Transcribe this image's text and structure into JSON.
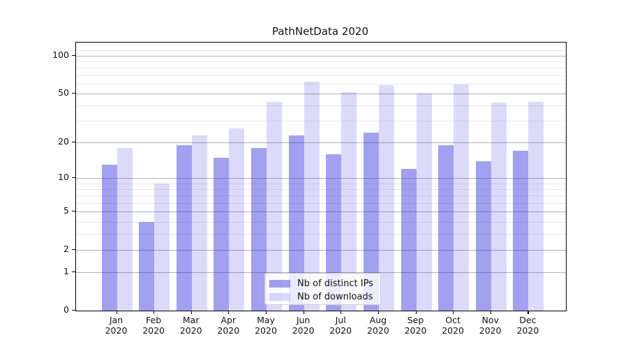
{
  "chart_data": {
    "type": "bar",
    "title": "PathNetData 2020",
    "categories": [
      "Jan",
      "Feb",
      "Mar",
      "Apr",
      "May",
      "Jun",
      "Jul",
      "Aug",
      "Sep",
      "Oct",
      "Nov",
      "Dec"
    ],
    "x_tick_year": "2020",
    "series": [
      {
        "key": "distinct-ips",
        "name": "Nb of distinct IPs",
        "color": "rgba(32,32,216,0.42)",
        "values": [
          13,
          4,
          19,
          15,
          18,
          23,
          16,
          24,
          12,
          19,
          14,
          17
        ]
      },
      {
        "key": "downloads",
        "name": "Nb of downloads",
        "color": "rgba(32,32,216,0.16)",
        "values": [
          18,
          9,
          23,
          26,
          43,
          62,
          51,
          58,
          50,
          59,
          42,
          43
        ]
      }
    ],
    "yscale": "log1p",
    "ylim": [
      0,
      127
    ],
    "xlim": [
      -1.09,
      12.0
    ],
    "bar_width_units": 0.41,
    "yticks_major": [
      0,
      1,
      2,
      5,
      10,
      20,
      50,
      100
    ],
    "yticks_minor": [
      3,
      4,
      6,
      7,
      8,
      9,
      30,
      40,
      60,
      70,
      80,
      90,
      110
    ],
    "grid": "horizontal major+minor",
    "legend_position": "inside lower-center"
  },
  "colors": {
    "background": "#ffffff",
    "major_grid": "#b0b0b0",
    "minor_grid": "#e7e7e7",
    "spine": "#000000",
    "text": "#111111",
    "legend_border": "#cccccc",
    "legend_bg": "rgba(255,255,255,0.8)"
  }
}
